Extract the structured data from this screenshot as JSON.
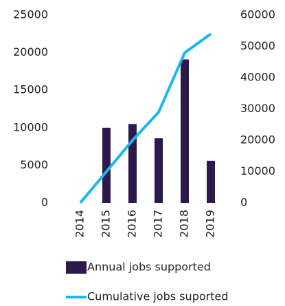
{
  "chart_data": {
    "type": "bar_line",
    "categories": [
      "2014",
      "2015",
      "2016",
      "2017",
      "2018",
      "2019"
    ],
    "series": [
      {
        "name": "Annual jobs supported",
        "type": "bar",
        "color": "#2b1a4b",
        "values": [
          0,
          10000,
          10500,
          8600,
          19100,
          5600
        ]
      },
      {
        "name": "Cumulative jobs suported",
        "type": "line",
        "axis": "y2",
        "color": "#1ab8ef",
        "values": [
          0,
          10000,
          20000,
          29000,
          48000,
          54000
        ]
      }
    ],
    "ylim": [
      0,
      25000
    ],
    "yticks": [
      0,
      5000,
      10000,
      15000,
      20000,
      25000
    ],
    "y2lim": [
      0,
      60000
    ],
    "y2ticks": [
      0,
      10000,
      20000,
      30000,
      40000,
      50000,
      60000
    ],
    "grid": false
  }
}
